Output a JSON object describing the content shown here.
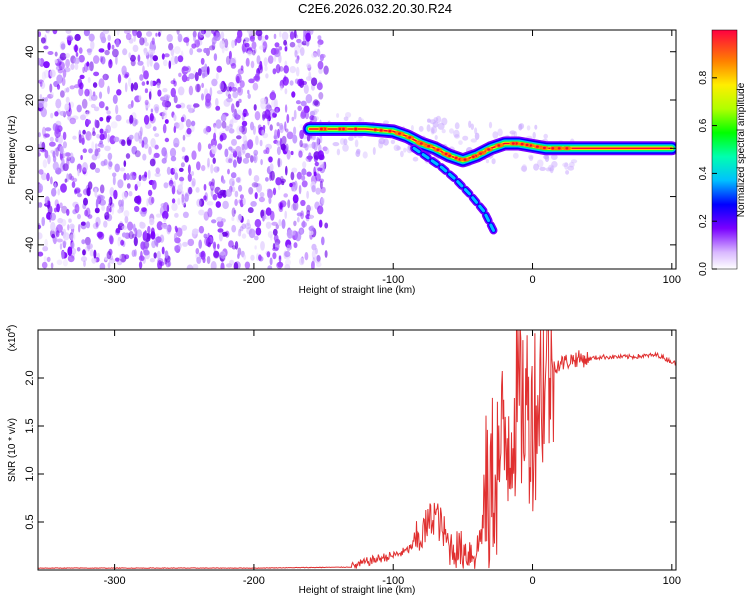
{
  "title": "C2E6.2026.032.20.30.R24",
  "chart_data": [
    {
      "type": "heatmap",
      "xlabel": "Height of straight line (km)",
      "ylabel": "Frequency (Hz)",
      "xlim": [
        -355,
        103
      ],
      "ylim": [
        -50,
        49
      ],
      "xticks": [
        -300,
        -200,
        -100,
        0,
        100
      ],
      "yticks": [
        -40,
        -20,
        0,
        20,
        40
      ],
      "noise_region_x": [
        -355,
        -148
      ],
      "ridge": {
        "x": [
          -160,
          -140,
          -120,
          -100,
          -90,
          -80,
          -70,
          -60,
          -50,
          -40,
          -30,
          -20,
          -10,
          0,
          10,
          20,
          100
        ],
        "frequency": [
          8,
          8,
          8,
          7,
          5,
          2,
          0,
          -3,
          -5,
          -3,
          0,
          2,
          2,
          1,
          0,
          0,
          0
        ]
      },
      "branch": {
        "x": [
          -85,
          -75,
          -65,
          -55,
          -45,
          -35,
          -28
        ],
        "frequency": [
          0,
          -4,
          -8,
          -13,
          -19,
          -26,
          -34
        ]
      },
      "colorbar": {
        "label": "Normalized spectral amplitude",
        "range": [
          0,
          1
        ],
        "ticks": [
          "0.0",
          "0.2",
          "0.4",
          "0.6",
          "0.8"
        ],
        "tick_values": [
          0.0,
          0.2,
          0.4,
          0.6,
          0.8
        ]
      },
      "grid": false
    },
    {
      "type": "line",
      "xlabel": "Height of straight line (km)",
      "ylabel": "SNR (10 * v/v)",
      "y_multiplier": "(x10",
      "y_multiplier_exp": "4",
      "y_multiplier_close": ")",
      "xlim": [
        -355,
        103
      ],
      "ylim": [
        0,
        2.5
      ],
      "xticks": [
        -300,
        -200,
        -100,
        0,
        100
      ],
      "yticks": [
        0.5,
        1.0,
        1.5,
        2.0
      ],
      "ytick_labels": [
        "0.5",
        "1.0",
        "1.5",
        "2.0"
      ],
      "series": [
        {
          "color": "#e03030",
          "x": [
            -355,
            -300,
            -200,
            -130,
            -120,
            -110,
            -100,
            -90,
            -80,
            -70,
            -60,
            -50,
            -40,
            -30,
            -20,
            -10,
            0,
            10,
            20,
            30,
            40,
            50,
            60,
            70,
            80,
            90,
            100,
            103
          ],
          "y": [
            0.02,
            0.02,
            0.02,
            0.03,
            0.08,
            0.12,
            0.15,
            0.2,
            0.35,
            0.6,
            0.25,
            0.2,
            0.18,
            0.9,
            1.3,
            1.8,
            1.6,
            2.1,
            2.15,
            2.2,
            2.2,
            2.22,
            2.22,
            2.22,
            2.23,
            2.24,
            2.17,
            2.15
          ]
        }
      ],
      "grid": false
    }
  ]
}
